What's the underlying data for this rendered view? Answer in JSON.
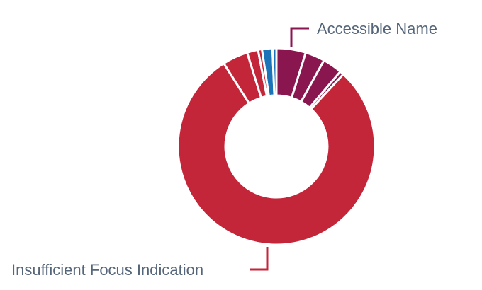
{
  "chart_data": {
    "type": "pie",
    "donut": true,
    "slices": [
      {
        "color": "#8a1650",
        "value": 4.5
      },
      {
        "color": "#8a1650",
        "value": 3.0
      },
      {
        "color": "#8a1650",
        "value": 3.0
      },
      {
        "color": "#8a1650",
        "value": 0.6
      },
      {
        "color": "#c42639",
        "value": 74.0
      },
      {
        "color": "#c42639",
        "value": 3.9
      },
      {
        "color": "#c42639",
        "value": 1.7
      },
      {
        "color": "#c42639",
        "value": 0.6
      },
      {
        "color": "#1b73b8",
        "value": 1.6
      },
      {
        "color": "#1b73b8",
        "value": 0.6
      }
    ],
    "callouts": [
      {
        "label": "Accessible Name",
        "slice_index": 0
      },
      {
        "label": "Insufficient Focus Indication",
        "slice_index": 4
      }
    ]
  }
}
